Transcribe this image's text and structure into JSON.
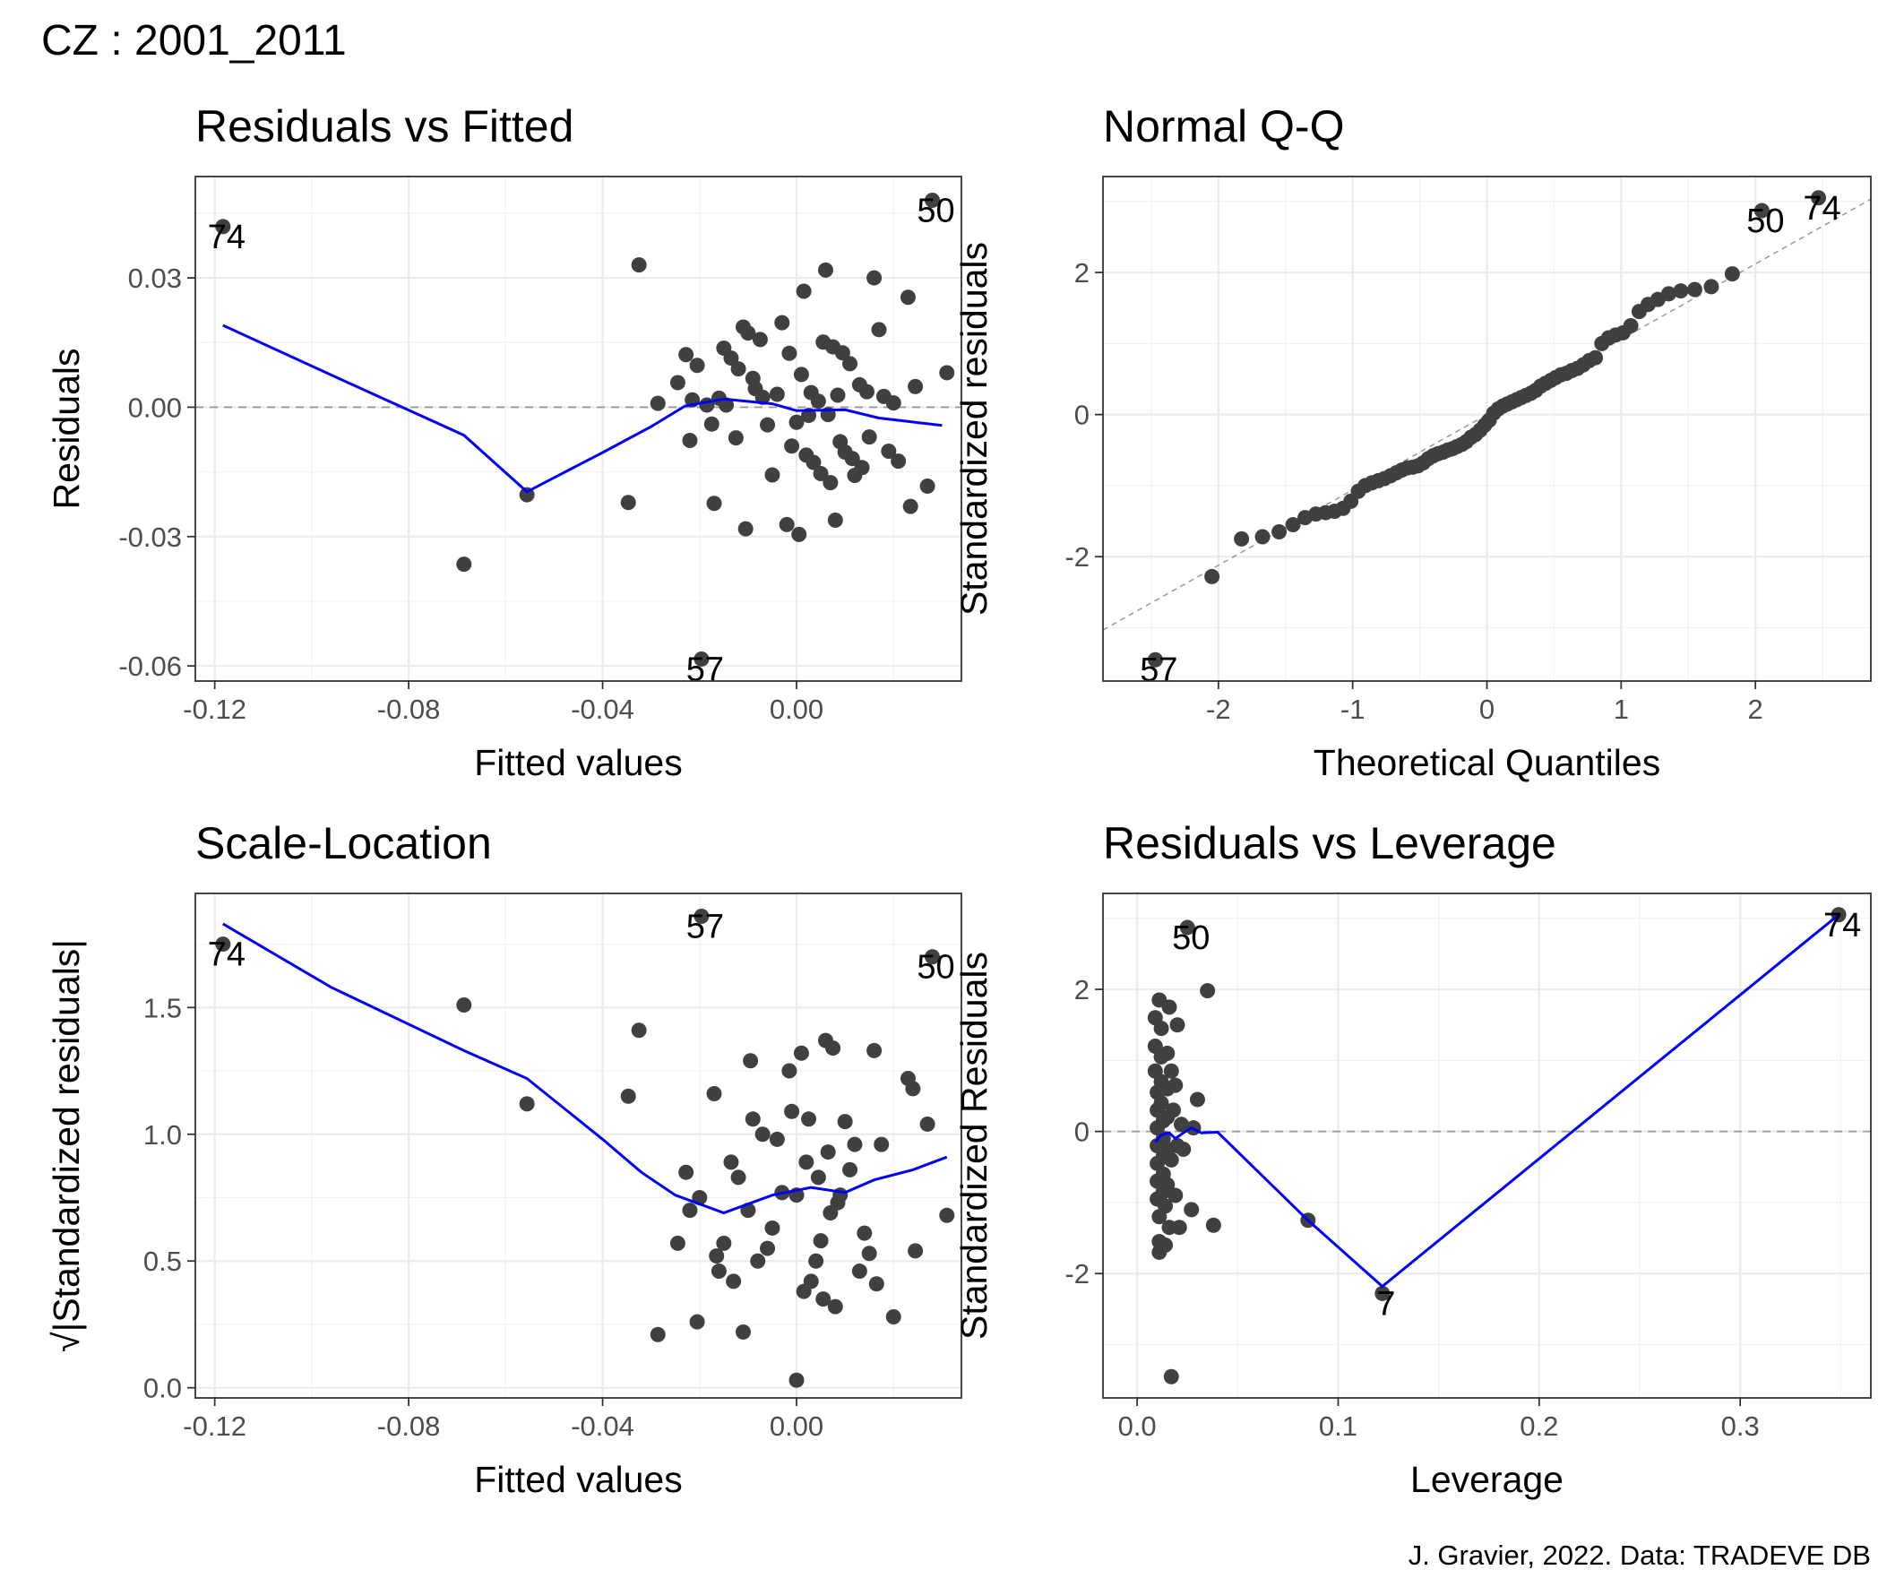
{
  "figure": {
    "title": "CZ : 2001_2011",
    "caption": "J. Gravier, 2022. Data: TRADEVE DB"
  },
  "colors": {
    "points": "#404040",
    "smooth_line": "#0000ff",
    "reference_line": "#999999"
  },
  "chart_data": [
    {
      "type": "scatter",
      "title": "Residuals vs Fitted",
      "xlabel": "Fitted values",
      "ylabel": "Residuals",
      "xlim": [
        -0.124,
        0.034
      ],
      "ylim": [
        -0.0635,
        0.0535
      ],
      "x_ticks": [
        -0.12,
        -0.08,
        -0.04,
        0.0
      ],
      "x_tick_labels": [
        "-0.12",
        "-0.08",
        "-0.04",
        "0.00"
      ],
      "y_ticks": [
        -0.06,
        -0.03,
        0.0,
        0.03
      ],
      "y_tick_labels": [
        "-0.06",
        "-0.03",
        "0.00",
        "0.03"
      ],
      "grid": true,
      "reference_y": 0,
      "points": [
        [
          -0.1183,
          0.0419
        ],
        [
          -0.0686,
          -0.0364
        ],
        [
          -0.0556,
          -0.0203
        ],
        [
          -0.0347,
          -0.0221
        ],
        [
          -0.0325,
          0.033
        ],
        [
          -0.0286,
          0.0009
        ],
        [
          -0.0245,
          0.0057
        ],
        [
          -0.0228,
          0.0122
        ],
        [
          -0.022,
          -0.0077
        ],
        [
          -0.0215,
          0.0017
        ],
        [
          -0.0205,
          0.0097
        ],
        [
          -0.0196,
          -0.0584
        ],
        [
          -0.0185,
          0.0005
        ],
        [
          -0.0175,
          -0.0039
        ],
        [
          -0.017,
          -0.0223
        ],
        [
          -0.016,
          0.0021
        ],
        [
          -0.015,
          0.0137
        ],
        [
          -0.0145,
          0.0005
        ],
        [
          -0.0135,
          0.0114
        ],
        [
          -0.0125,
          -0.0071
        ],
        [
          -0.012,
          0.0089
        ],
        [
          -0.011,
          0.0186
        ],
        [
          -0.0105,
          -0.0282
        ],
        [
          -0.01,
          0.0172
        ],
        [
          -0.009,
          0.0067
        ],
        [
          -0.0085,
          0.0043
        ],
        [
          -0.0075,
          0.0157
        ],
        [
          -0.007,
          0.0023
        ],
        [
          -0.006,
          -0.0041
        ],
        [
          -0.005,
          -0.0157
        ],
        [
          -0.004,
          0.003
        ],
        [
          -0.003,
          0.0196
        ],
        [
          -0.002,
          -0.0272
        ],
        [
          -0.0015,
          0.0125
        ],
        [
          -0.001,
          -0.009
        ],
        [
          0.0,
          -0.0035
        ],
        [
          0.0005,
          -0.0295
        ],
        [
          0.001,
          0.0076
        ],
        [
          0.0015,
          0.0269
        ],
        [
          0.002,
          -0.0111
        ],
        [
          0.0025,
          -0.0019
        ],
        [
          0.003,
          0.0034
        ],
        [
          0.0035,
          -0.0128
        ],
        [
          0.0045,
          0.0014
        ],
        [
          0.005,
          -0.0154
        ],
        [
          0.0055,
          0.0151
        ],
        [
          0.006,
          0.0318
        ],
        [
          0.0065,
          -0.0017
        ],
        [
          0.007,
          -0.0175
        ],
        [
          0.0075,
          0.014
        ],
        [
          0.008,
          -0.0262
        ],
        [
          0.0085,
          0.0028
        ],
        [
          0.009,
          -0.008
        ],
        [
          0.0095,
          0.0126
        ],
        [
          0.01,
          -0.0104
        ],
        [
          0.011,
          0.0101
        ],
        [
          0.0115,
          -0.0119
        ],
        [
          0.012,
          -0.0158
        ],
        [
          0.013,
          0.0052
        ],
        [
          0.0135,
          -0.014
        ],
        [
          0.0145,
          0.0036
        ],
        [
          0.015,
          -0.0069
        ],
        [
          0.016,
          0.03
        ],
        [
          0.017,
          0.018
        ],
        [
          0.018,
          0.0025
        ],
        [
          0.019,
          -0.0102
        ],
        [
          0.02,
          0.001
        ],
        [
          0.021,
          -0.0125
        ],
        [
          0.023,
          0.0255
        ],
        [
          0.0235,
          -0.023
        ],
        [
          0.0245,
          0.0048
        ],
        [
          0.027,
          -0.0183
        ],
        [
          0.028,
          0.048
        ],
        [
          0.031,
          0.008
        ]
      ],
      "smooth": [
        [
          -0.1183,
          0.019
        ],
        [
          -0.096,
          0.0075
        ],
        [
          -0.0686,
          -0.0065
        ],
        [
          -0.0556,
          -0.0196
        ],
        [
          -0.04,
          -0.0105
        ],
        [
          -0.03,
          -0.0045
        ],
        [
          -0.023,
          0.0003
        ],
        [
          -0.015,
          0.0019
        ],
        [
          -0.005,
          0.0008
        ],
        [
          0.0,
          -0.0008
        ],
        [
          0.01,
          -0.0006
        ],
        [
          0.017,
          -0.0025
        ],
        [
          0.03,
          -0.0042
        ]
      ],
      "labels": [
        {
          "text": "74",
          "x": -0.1183,
          "y": 0.0419
        },
        {
          "text": "50",
          "x": 0.028,
          "y": 0.048
        },
        {
          "text": "57",
          "x": -0.0196,
          "y": -0.0584
        }
      ]
    },
    {
      "type": "scatter",
      "title": "Normal Q-Q",
      "xlabel": "Theoretical Quantiles",
      "ylabel": "Standardized residuals",
      "xlim": [
        -2.86,
        2.86
      ],
      "ylim": [
        -3.75,
        3.35
      ],
      "x_ticks": [
        -2,
        -1,
        0,
        1,
        2
      ],
      "x_tick_labels": [
        "-2",
        "-1",
        "0",
        "1",
        "2"
      ],
      "y_ticks": [
        -2,
        0,
        2
      ],
      "y_tick_labels": [
        "-2",
        "0",
        "2"
      ],
      "grid": true,
      "reference_line": {
        "slope": 1.06,
        "intercept": 0.0
      },
      "series_n": 74,
      "points_y": [
        -3.45,
        -2.28,
        -1.75,
        -1.72,
        -1.65,
        -1.55,
        -1.45,
        -1.4,
        -1.38,
        -1.36,
        -1.32,
        -1.22,
        -1.08,
        -1.0,
        -0.96,
        -0.93,
        -0.9,
        -0.86,
        -0.82,
        -0.78,
        -0.75,
        -0.74,
        -0.72,
        -0.68,
        -0.62,
        -0.58,
        -0.55,
        -0.53,
        -0.5,
        -0.48,
        -0.45,
        -0.42,
        -0.38,
        -0.32,
        -0.28,
        -0.22,
        -0.15,
        -0.08,
        0.02,
        0.08,
        0.12,
        0.15,
        0.18,
        0.21,
        0.24,
        0.27,
        0.3,
        0.34,
        0.4,
        0.44,
        0.48,
        0.52,
        0.56,
        0.58,
        0.62,
        0.65,
        0.7,
        0.76,
        0.8,
        1.0,
        1.08,
        1.12,
        1.15,
        1.25,
        1.45,
        1.55,
        1.62,
        1.7,
        1.74,
        1.76,
        1.8,
        1.98,
        2.87,
        3.05
      ],
      "labels": [
        {
          "text": "57",
          "index": 0
        },
        {
          "text": "50",
          "index": 72
        },
        {
          "text": "74",
          "index": 73
        }
      ]
    },
    {
      "type": "scatter",
      "title": "Scale-Location",
      "xlabel": "Fitted values",
      "ylabel": "√|Standardized residuals|",
      "xlim": [
        -0.124,
        0.034
      ],
      "ylim": [
        -0.04,
        1.95
      ],
      "x_ticks": [
        -0.12,
        -0.08,
        -0.04,
        0.0
      ],
      "x_tick_labels": [
        "-0.12",
        "-0.08",
        "-0.04",
        "0.00"
      ],
      "y_ticks": [
        0.0,
        0.5,
        1.0,
        1.5
      ],
      "y_tick_labels": [
        "0.0",
        "0.5",
        "1.0",
        "1.5"
      ],
      "grid": true,
      "points": [
        [
          -0.1183,
          1.75
        ],
        [
          -0.0686,
          1.51
        ],
        [
          -0.0556,
          1.12
        ],
        [
          -0.0347,
          1.15
        ],
        [
          -0.0325,
          1.41
        ],
        [
          -0.0286,
          0.21
        ],
        [
          -0.0245,
          0.57
        ],
        [
          -0.0228,
          0.85
        ],
        [
          -0.022,
          0.7
        ],
        [
          -0.0205,
          0.26
        ],
        [
          -0.02,
          0.75
        ],
        [
          -0.0196,
          1.86
        ],
        [
          -0.017,
          1.16
        ],
        [
          -0.0165,
          0.52
        ],
        [
          -0.016,
          0.46
        ],
        [
          -0.015,
          0.57
        ],
        [
          -0.0135,
          0.89
        ],
        [
          -0.013,
          0.42
        ],
        [
          -0.012,
          0.83
        ],
        [
          -0.011,
          0.22
        ],
        [
          -0.01,
          0.7
        ],
        [
          -0.0095,
          1.29
        ],
        [
          -0.009,
          1.06
        ],
        [
          -0.008,
          0.5
        ],
        [
          -0.007,
          1.0
        ],
        [
          -0.006,
          0.55
        ],
        [
          -0.005,
          0.63
        ],
        [
          -0.004,
          0.98
        ],
        [
          -0.003,
          0.77
        ],
        [
          -0.0015,
          1.25
        ],
        [
          -0.001,
          1.09
        ],
        [
          0.0,
          0.76
        ],
        [
          0.0,
          0.03
        ],
        [
          0.001,
          1.32
        ],
        [
          0.0015,
          0.38
        ],
        [
          0.002,
          0.89
        ],
        [
          0.0025,
          1.06
        ],
        [
          0.003,
          0.42
        ],
        [
          0.004,
          0.5
        ],
        [
          0.0045,
          0.83
        ],
        [
          0.005,
          0.58
        ],
        [
          0.0055,
          0.35
        ],
        [
          0.006,
          1.37
        ],
        [
          0.0065,
          0.93
        ],
        [
          0.007,
          0.69
        ],
        [
          0.0075,
          1.34
        ],
        [
          0.008,
          0.32
        ],
        [
          0.0085,
          0.73
        ],
        [
          0.009,
          0.76
        ],
        [
          0.01,
          1.05
        ],
        [
          0.011,
          0.86
        ],
        [
          0.012,
          0.96
        ],
        [
          0.013,
          0.46
        ],
        [
          0.014,
          0.61
        ],
        [
          0.015,
          0.53
        ],
        [
          0.016,
          1.33
        ],
        [
          0.0165,
          0.41
        ],
        [
          0.0175,
          0.96
        ],
        [
          0.02,
          0.28
        ],
        [
          0.023,
          1.22
        ],
        [
          0.024,
          1.18
        ],
        [
          0.0245,
          0.54
        ],
        [
          0.027,
          1.04
        ],
        [
          0.028,
          1.7
        ],
        [
          0.031,
          0.68
        ]
      ],
      "smooth": [
        [
          -0.1183,
          1.83
        ],
        [
          -0.096,
          1.58
        ],
        [
          -0.0686,
          1.33
        ],
        [
          -0.0556,
          1.22
        ],
        [
          -0.04,
          0.98
        ],
        [
          -0.032,
          0.85
        ],
        [
          -0.025,
          0.76
        ],
        [
          -0.015,
          0.69
        ],
        [
          -0.005,
          0.76
        ],
        [
          0.003,
          0.79
        ],
        [
          0.01,
          0.77
        ],
        [
          0.016,
          0.82
        ],
        [
          0.024,
          0.86
        ],
        [
          0.031,
          0.91
        ]
      ],
      "labels": [
        {
          "text": "74",
          "x": -0.1183,
          "y": 1.75
        },
        {
          "text": "57",
          "x": -0.0196,
          "y": 1.86
        },
        {
          "text": "50",
          "x": 0.028,
          "y": 1.7
        }
      ]
    },
    {
      "type": "scatter",
      "title": "Residuals vs Leverage",
      "xlabel": "Leverage",
      "ylabel": "Standardized Residuals",
      "xlim": [
        -0.017,
        0.365
      ],
      "ylim": [
        -3.75,
        3.35
      ],
      "x_ticks": [
        0.0,
        0.1,
        0.2,
        0.3
      ],
      "x_tick_labels": [
        "0.0",
        "0.1",
        "0.2",
        "0.3"
      ],
      "y_ticks": [
        -2,
        0,
        2
      ],
      "y_tick_labels": [
        "-2",
        "0",
        "2"
      ],
      "grid": true,
      "reference_y": 0,
      "points": [
        [
          0.009,
          1.6
        ],
        [
          0.009,
          1.2
        ],
        [
          0.009,
          0.85
        ],
        [
          0.01,
          0.55
        ],
        [
          0.01,
          0.3
        ],
        [
          0.01,
          0.05
        ],
        [
          0.01,
          -0.2
        ],
        [
          0.01,
          -0.45
        ],
        [
          0.01,
          -0.7
        ],
        [
          0.01,
          -0.95
        ],
        [
          0.011,
          -1.2
        ],
        [
          0.011,
          -1.55
        ],
        [
          0.011,
          -1.7
        ],
        [
          0.011,
          1.85
        ],
        [
          0.012,
          1.45
        ],
        [
          0.012,
          1.05
        ],
        [
          0.012,
          0.7
        ],
        [
          0.012,
          0.4
        ],
        [
          0.013,
          0.15
        ],
        [
          0.013,
          -0.1
        ],
        [
          0.013,
          -0.35
        ],
        [
          0.013,
          -0.6
        ],
        [
          0.013,
          -0.85
        ],
        [
          0.014,
          -1.05
        ],
        [
          0.014,
          -1.6
        ],
        [
          0.015,
          1.1
        ],
        [
          0.015,
          0.6
        ],
        [
          0.015,
          0.2
        ],
        [
          0.015,
          -0.25
        ],
        [
          0.015,
          -0.75
        ],
        [
          0.016,
          1.75
        ],
        [
          0.016,
          -1.35
        ],
        [
          0.017,
          0.85
        ],
        [
          0.017,
          -0.4
        ],
        [
          0.017,
          -3.45
        ],
        [
          0.018,
          0.3
        ],
        [
          0.019,
          -0.9
        ],
        [
          0.019,
          0.65
        ],
        [
          0.02,
          1.5
        ],
        [
          0.02,
          -0.2
        ],
        [
          0.021,
          -1.35
        ],
        [
          0.022,
          0.1
        ],
        [
          0.023,
          -0.25
        ],
        [
          0.025,
          2.87
        ],
        [
          0.027,
          -1.1
        ],
        [
          0.028,
          0.05
        ],
        [
          0.03,
          0.45
        ],
        [
          0.035,
          1.98
        ],
        [
          0.038,
          -1.32
        ],
        [
          0.085,
          -1.25
        ],
        [
          0.122,
          -2.28
        ],
        [
          0.349,
          3.05
        ]
      ],
      "smooth": [
        [
          0.009,
          -0.15
        ],
        [
          0.012,
          -0.05
        ],
        [
          0.016,
          -0.02
        ],
        [
          0.019,
          -0.1
        ],
        [
          0.023,
          -0.02
        ],
        [
          0.027,
          0.05
        ],
        [
          0.032,
          -0.02
        ],
        [
          0.04,
          -0.01
        ],
        [
          0.085,
          -1.25
        ],
        [
          0.122,
          -2.18
        ],
        [
          0.349,
          3.05
        ]
      ],
      "labels": [
        {
          "text": "74",
          "x": 0.349,
          "y": 3.05
        },
        {
          "text": "50",
          "x": 0.025,
          "y": 2.87
        },
        {
          "text": "7",
          "x": 0.122,
          "y": -2.28
        }
      ]
    }
  ]
}
